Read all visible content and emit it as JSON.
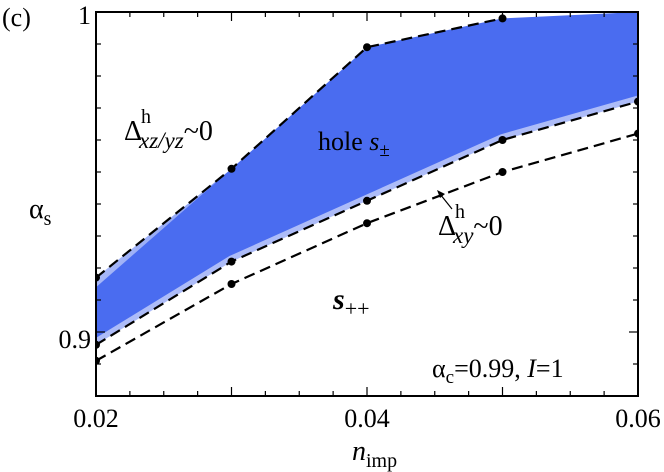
{
  "panel_label": "(c)",
  "colors": {
    "region": "#4a6cf0",
    "region_edge": "#ffffff",
    "s_pp_label": "#3aa020",
    "curve": "#000000"
  },
  "chart_data": {
    "type": "line",
    "xlim": [
      0.02,
      0.06
    ],
    "ylim": [
      0.88,
      1.0
    ],
    "xticks": [
      "0.02",
      "0.04",
      "0.06"
    ],
    "yticks": [
      "0.9",
      "1"
    ],
    "xlabel": {
      "main": "n",
      "sub": "imp"
    },
    "ylabel": {
      "main": "α",
      "sub": "s"
    },
    "grid": false,
    "series": [
      {
        "role": "boundary-upper",
        "x": [
          0.02,
          0.03,
          0.04,
          0.05
        ],
        "y": [
          0.917,
          0.951,
          0.989,
          0.998
        ]
      },
      {
        "role": "boundary-middle",
        "x": [
          0.02,
          0.03,
          0.04,
          0.05,
          0.06
        ],
        "y": [
          0.896,
          0.922,
          0.941,
          0.96,
          0.972
        ]
      },
      {
        "role": "boundary-lower",
        "x": [
          0.02,
          0.03,
          0.04,
          0.05,
          0.06
        ],
        "y": [
          0.891,
          0.915,
          0.934,
          0.95,
          0.962
        ]
      }
    ],
    "region_top": {
      "x": [
        0.02,
        0.06
      ],
      "y": [
        0.998,
        1.0
      ]
    },
    "annotations": {
      "delta_xzyz": {
        "sym": "Δ",
        "sup": "h",
        "sub": "xz/yz",
        "tail": "~0"
      },
      "hole_spm": {
        "text": "hole ",
        "sym": "s",
        "sub": "±"
      },
      "delta_xy": {
        "sym": "Δ",
        "sup": "h",
        "sub": "xy",
        "tail": "~0"
      },
      "s_pp": {
        "sym": "s",
        "sub": "++"
      },
      "params": {
        "alpha": "α",
        "alpha_sub": "c",
        "alpha_val": "=0.99, ",
        "I": "I",
        "I_val": "=1"
      }
    }
  }
}
